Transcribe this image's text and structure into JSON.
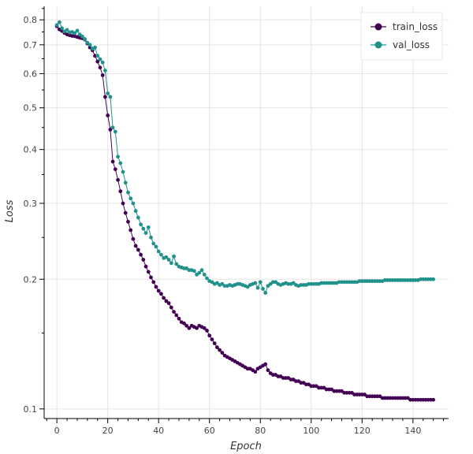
{
  "chart_data": {
    "type": "line",
    "title": "",
    "xlabel": "Epoch",
    "ylabel": "Loss",
    "xlim": [
      -5,
      154
    ],
    "ylim": [
      0.095,
      0.86
    ],
    "yscale": "log",
    "grid": true,
    "legend_position": "top-right",
    "xticks": [
      0,
      20,
      40,
      60,
      80,
      100,
      120,
      140
    ],
    "xtick_labels": [
      "0",
      "20",
      "40",
      "60",
      "80",
      "100",
      "120",
      "140"
    ],
    "yticks": [
      0.1,
      0.2,
      0.3,
      0.4,
      0.5,
      0.6,
      0.7,
      0.8
    ],
    "ytick_labels": [
      "0.1",
      "0.2",
      "0.3",
      "0.4",
      "0.5",
      "0.6",
      "0.7",
      "0.8"
    ],
    "series": [
      {
        "name": "train_loss",
        "color": "#440154",
        "values": [
          0.773,
          0.76,
          0.754,
          0.746,
          0.74,
          0.737,
          0.734,
          0.733,
          0.73,
          0.727,
          0.725,
          0.72,
          0.705,
          0.69,
          0.68,
          0.66,
          0.64,
          0.62,
          0.595,
          0.53,
          0.48,
          0.445,
          0.375,
          0.36,
          0.34,
          0.32,
          0.3,
          0.285,
          0.272,
          0.26,
          0.248,
          0.239,
          0.234,
          0.228,
          0.222,
          0.214,
          0.208,
          0.202,
          0.197,
          0.192,
          0.188,
          0.185,
          0.181,
          0.178,
          0.176,
          0.172,
          0.168,
          0.165,
          0.162,
          0.159,
          0.158,
          0.156,
          0.154,
          0.156,
          0.155,
          0.154,
          0.156,
          0.155,
          0.154,
          0.152,
          0.148,
          0.145,
          0.142,
          0.139,
          0.137,
          0.135,
          0.133,
          0.132,
          0.131,
          0.13,
          0.129,
          0.128,
          0.127,
          0.126,
          0.125,
          0.124,
          0.124,
          0.123,
          0.122,
          0.124,
          0.125,
          0.126,
          0.127,
          0.123,
          0.121,
          0.12,
          0.12,
          0.119,
          0.119,
          0.118,
          0.118,
          0.118,
          0.117,
          0.117,
          0.116,
          0.116,
          0.115,
          0.115,
          0.114,
          0.114,
          0.113,
          0.113,
          0.113,
          0.112,
          0.112,
          0.112,
          0.111,
          0.111,
          0.111,
          0.11,
          0.11,
          0.11,
          0.11,
          0.109,
          0.109,
          0.109,
          0.109,
          0.108,
          0.108,
          0.108,
          0.108,
          0.108,
          0.107,
          0.107,
          0.107,
          0.107,
          0.107,
          0.107,
          0.106,
          0.106,
          0.106,
          0.106,
          0.106,
          0.106,
          0.106,
          0.106,
          0.106,
          0.106,
          0.106,
          0.105,
          0.105,
          0.105,
          0.105,
          0.105,
          0.105,
          0.105,
          0.105,
          0.105,
          0.105
        ]
      },
      {
        "name": "val_loss",
        "color": "#21918c",
        "values": [
          0.778,
          0.79,
          0.765,
          0.752,
          0.758,
          0.748,
          0.75,
          0.745,
          0.755,
          0.74,
          0.732,
          0.722,
          0.708,
          0.7,
          0.686,
          0.69,
          0.66,
          0.648,
          0.637,
          0.61,
          0.54,
          0.53,
          0.45,
          0.44,
          0.385,
          0.372,
          0.355,
          0.335,
          0.318,
          0.308,
          0.3,
          0.288,
          0.278,
          0.268,
          0.262,
          0.256,
          0.264,
          0.25,
          0.242,
          0.238,
          0.232,
          0.228,
          0.224,
          0.225,
          0.222,
          0.218,
          0.226,
          0.217,
          0.214,
          0.213,
          0.212,
          0.212,
          0.21,
          0.21,
          0.209,
          0.205,
          0.207,
          0.21,
          0.205,
          0.201,
          0.198,
          0.197,
          0.195,
          0.196,
          0.194,
          0.195,
          0.193,
          0.193,
          0.194,
          0.193,
          0.194,
          0.195,
          0.195,
          0.194,
          0.193,
          0.192,
          0.194,
          0.195,
          0.196,
          0.191,
          0.197,
          0.19,
          0.186,
          0.193,
          0.195,
          0.197,
          0.197,
          0.195,
          0.194,
          0.195,
          0.196,
          0.195,
          0.195,
          0.196,
          0.194,
          0.193,
          0.194,
          0.194,
          0.194,
          0.195,
          0.195,
          0.195,
          0.195,
          0.195,
          0.196,
          0.196,
          0.196,
          0.196,
          0.196,
          0.196,
          0.196,
          0.197,
          0.197,
          0.197,
          0.197,
          0.197,
          0.197,
          0.197,
          0.197,
          0.198,
          0.198,
          0.198,
          0.198,
          0.198,
          0.198,
          0.198,
          0.198,
          0.198,
          0.198,
          0.199,
          0.199,
          0.199,
          0.199,
          0.199,
          0.199,
          0.199,
          0.199,
          0.199,
          0.199,
          0.199,
          0.199,
          0.199,
          0.199,
          0.2,
          0.2,
          0.2,
          0.2,
          0.2,
          0.2
        ]
      }
    ]
  }
}
